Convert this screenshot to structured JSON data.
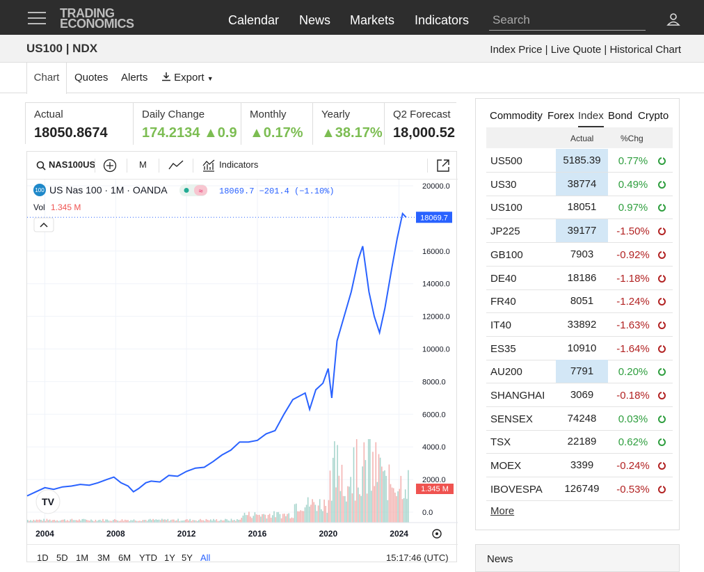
{
  "nav": {
    "logo_line1": "TRADING",
    "logo_line2": "ECONOMICS",
    "links": [
      "Calendar",
      "News",
      "Markets",
      "Indicators"
    ],
    "search_placeholder": "Search"
  },
  "page": {
    "title": "US100 | NDX",
    "header_links": "Index Price | Live Quote | Historical Chart"
  },
  "tabs": [
    "Chart",
    "Quotes",
    "Alerts",
    "Export"
  ],
  "stats": [
    {
      "label": "Actual",
      "value": "18050.8674"
    },
    {
      "label": "Daily Change",
      "value": "174.2134 ▲0.9"
    },
    {
      "label": "Monthly",
      "value": "▲0.17%"
    },
    {
      "label": "Yearly",
      "value": "▲38.17%"
    },
    {
      "label": "Q2 Forecast",
      "value": "18,000.52"
    }
  ],
  "chart_toolbar": {
    "symbol": "NAS100US",
    "interval": "M",
    "indicators": "Indicators"
  },
  "legend": {
    "badge": "100",
    "name": "US Nas 100 · 1M · OANDA",
    "quote": "18069.7 −201.4 (−1.10%)",
    "vol_label": "Vol",
    "vol_value": "1.345 M"
  },
  "watermark": "TV",
  "price_tag": "18069.7",
  "volume_tag": "1.345 M",
  "chart_data": {
    "type": "line",
    "x": [
      2003.0,
      2003.5,
      2004.0,
      2004.5,
      2005.0,
      2005.5,
      2006.0,
      2006.5,
      2007.0,
      2007.5,
      2007.9,
      2008.3,
      2008.7,
      2009.0,
      2009.3,
      2009.7,
      2010.0,
      2010.5,
      2011.0,
      2011.5,
      2012.0,
      2012.5,
      2013.0,
      2013.5,
      2014.0,
      2014.5,
      2015.0,
      2015.5,
      2016.0,
      2016.5,
      2017.0,
      2017.5,
      2018.0,
      2018.7,
      2018.95,
      2019.3,
      2019.7,
      2020.0,
      2020.2,
      2020.5,
      2020.9,
      2021.3,
      2021.7,
      2021.95,
      2022.3,
      2022.6,
      2022.9,
      2023.2,
      2023.6,
      2023.9,
      2024.2,
      2024.4
    ],
    "y": [
      1000,
      1250,
      1500,
      1400,
      1550,
      1600,
      1700,
      1650,
      1800,
      2000,
      2150,
      1800,
      1600,
      1250,
      1450,
      1800,
      1900,
      1850,
      2250,
      2200,
      2500,
      2700,
      2750,
      3100,
      3500,
      3800,
      4300,
      4300,
      4400,
      4800,
      5000,
      6000,
      6900,
      7300,
      6300,
      7500,
      7900,
      8800,
      7000,
      10500,
      12000,
      13500,
      15500,
      16300,
      13500,
      12000,
      11000,
      12500,
      15000,
      16800,
      18300,
      18069.7
    ],
    "ylim": [
      0,
      20000
    ],
    "yticks": [
      "20000.0",
      "16000.0",
      "14000.0",
      "12000.0",
      "10000.0",
      "8000.0",
      "6000.0",
      "4000.0",
      "2000.0",
      "0.0"
    ],
    "xticks": [
      "2004",
      "2008",
      "2012",
      "2016",
      "2020",
      "2024"
    ]
  },
  "periods": [
    "1D",
    "5D",
    "1M",
    "3M",
    "6M",
    "YTD",
    "1Y",
    "5Y",
    "All"
  ],
  "clock": "15:17:46 (UTC)",
  "sidebar": {
    "tabs": [
      "Commodity",
      "Forex",
      "Index",
      "Bond",
      "Crypto"
    ],
    "headers": [
      "Actual",
      "%Chg"
    ],
    "rows": [
      {
        "name": "US500",
        "price": "5185.39",
        "chg": "0.77%",
        "hl": true,
        "color": "#2e9e3e"
      },
      {
        "name": "US30",
        "price": "38774",
        "chg": "0.49%",
        "hl": true,
        "color": "#2e9e3e"
      },
      {
        "name": "US100",
        "price": "18051",
        "chg": "0.97%",
        "hl": false,
        "color": "#2e9e3e"
      },
      {
        "name": "JP225",
        "price": "39177",
        "chg": "-1.50%",
        "hl": true,
        "color": "#b22222"
      },
      {
        "name": "GB100",
        "price": "7903",
        "chg": "-0.92%",
        "hl": false,
        "color": "#b22222"
      },
      {
        "name": "DE40",
        "price": "18186",
        "chg": "-1.18%",
        "hl": false,
        "color": "#b22222"
      },
      {
        "name": "FR40",
        "price": "8051",
        "chg": "-1.24%",
        "hl": false,
        "color": "#b22222"
      },
      {
        "name": "IT40",
        "price": "33892",
        "chg": "-1.63%",
        "hl": false,
        "color": "#b22222"
      },
      {
        "name": "ES35",
        "price": "10910",
        "chg": "-1.64%",
        "hl": false,
        "color": "#b22222"
      },
      {
        "name": "AU200",
        "price": "7791",
        "chg": "0.20%",
        "hl": true,
        "color": "#2e9e3e"
      },
      {
        "name": "SHANGHAI",
        "price": "3069",
        "chg": "-0.18%",
        "hl": false,
        "color": "#b22222"
      },
      {
        "name": "SENSEX",
        "price": "74248",
        "chg": "0.03%",
        "hl": false,
        "color": "#2e9e3e"
      },
      {
        "name": "TSX",
        "price": "22189",
        "chg": "0.62%",
        "hl": false,
        "color": "#2e9e3e"
      },
      {
        "name": "MOEX",
        "price": "3399",
        "chg": "-0.24%",
        "hl": false,
        "color": "#b22222"
      },
      {
        "name": "IBOVESPA",
        "price": "126749",
        "chg": "-0.53%",
        "hl": false,
        "color": "#b22222"
      }
    ],
    "more": "More"
  },
  "news_title": "News",
  "colors": {
    "line": "#2962ff",
    "green_stat": "#7cbd52",
    "highlight": "#d3e7f6",
    "up": "#2e9e3e",
    "down": "#b22222"
  }
}
